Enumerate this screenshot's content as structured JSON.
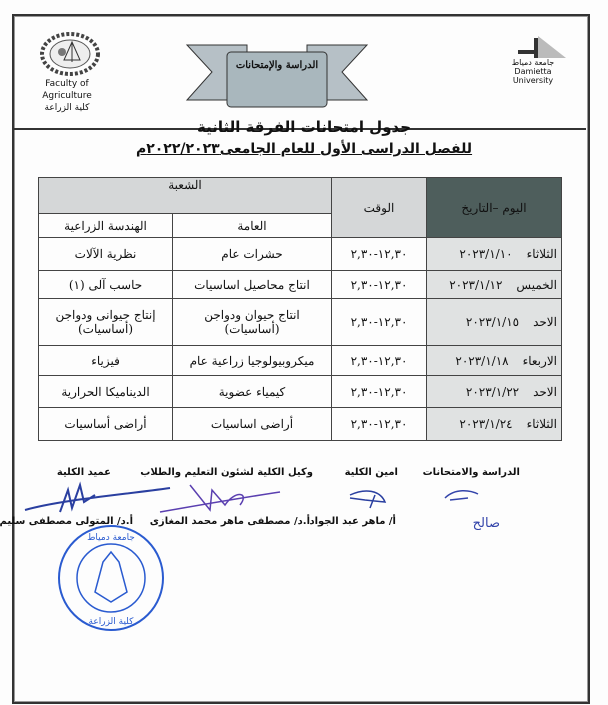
{
  "header": {
    "faculty_en": "Faculty of Agriculture",
    "faculty_ar": "كلية الزراعة",
    "university_ar": "جامعة دمياط",
    "university_en": "Damietta University",
    "banner": "الدراسة والإمتحانات"
  },
  "title": "جدول امتحانات الفرقة الثانية",
  "subtitle": "للفصل الدراسى الأول للعام الجامعى٢٠٢٢/٢٠٢٣م",
  "table": {
    "col_date": "اليوم –التاريخ",
    "col_time": "الوقت",
    "col_section": "الشعبة",
    "col_general": "العامة",
    "col_eng": "الهندسة الزراعية",
    "rows": [
      {
        "day": "الثلاثاء",
        "date": "٢٠٢٣/١/١٠",
        "time": "١٢,٣٠-٢,٣٠",
        "general": "حشرات عام",
        "eng": "نظرية الآلات"
      },
      {
        "day": "الخميس",
        "date": "٢٠٢٣/١/١٢",
        "time": "١٢,٣٠-٢,٣٠",
        "general": "انتاج محاصيل اساسيات",
        "eng": "حاسب آلى (١)"
      },
      {
        "day": "الاحد",
        "date": "٢٠٢٣/١/١٥",
        "time": "١٢,٣٠-٢,٣٠",
        "general": "انتاج حيوان ودواجن (أساسيات)",
        "eng": "إنتاج حيوانى ودواجن (أساسيات)"
      },
      {
        "day": "الاربعاء",
        "date": "٢٠٢٣/١/١٨",
        "time": "١٢,٣٠-٢,٣٠",
        "general": "ميكروبيولوجيا زراعية عام",
        "eng": "فيزياء"
      },
      {
        "day": "الاحد",
        "date": "٢٠٢٣/١/٢٢",
        "time": "١٢,٣٠-٢,٣٠",
        "general": "كيمياء عضوية",
        "eng": "الديناميكا الحرارية"
      },
      {
        "day": "الثلاثاء",
        "date": "٢٠٢٣/١/٢٤",
        "time": "١٢,٣٠-٢,٣٠",
        "general": "أراضى اساسيات",
        "eng": "أراضى أساسيات"
      }
    ]
  },
  "signatures": [
    {
      "role": "الدراسة والامتحانات",
      "name": "صالح"
    },
    {
      "role": "امين الكلية",
      "name": "أ/ ماهر عبد الجواد"
    },
    {
      "role": "وكيل الكلية لشئون التعليم والطلاب",
      "name": "أ.د/ مصطفى ماهر محمد المغازى"
    },
    {
      "role": "عميد الكلية",
      "name": "أ.د/ المتولى مصطفى سليم"
    }
  ],
  "stamp": {
    "top": "جامعة دمياط",
    "bottom": "كلية الزراعة"
  },
  "colors": {
    "stamp": "#2a5bd0",
    "header_dark": "#4e5e5c",
    "header_light": "#d5d7d8"
  }
}
